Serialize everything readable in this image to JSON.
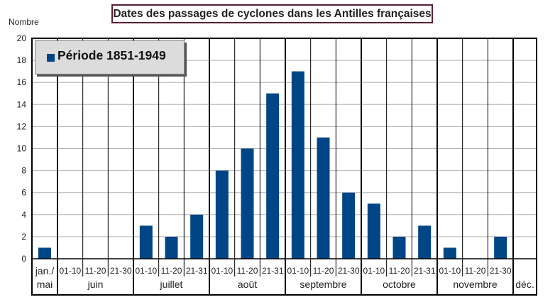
{
  "chart_data": {
    "type": "bar",
    "title": "Dates des passages de cyclones dans les Antilles françaises",
    "ylabel": "Nombre",
    "xlabel": "",
    "ylim": [
      0,
      20
    ],
    "yticks": [
      "0",
      "2",
      "4",
      "6",
      "8",
      "10",
      "12",
      "14",
      "16",
      "18",
      "20"
    ],
    "grid": true,
    "legend_position": "top-left",
    "color": "#004586",
    "series": [
      {
        "name": "Période 1851-1949",
        "values": [
          1,
          0,
          0,
          0,
          3,
          2,
          4,
          8,
          10,
          15,
          17,
          11,
          6,
          5,
          2,
          3,
          1,
          0,
          2,
          0
        ]
      }
    ],
    "categories": [
      "jan./mai",
      "juin 01-10",
      "juin 11-20",
      "juin 21-30",
      "juillet 01-10",
      "juillet 11-20",
      "juillet 21-31",
      "août 01-10",
      "août 11-20",
      "août 21-31",
      "septembre 01-10",
      "septembre 11-20",
      "septembre 21-30",
      "octobre 01-10",
      "octobre 11-20",
      "octobre 21-31",
      "novembre 01-10",
      "novembre 11-20",
      "novembre 21-30",
      "déc."
    ],
    "groups": [
      {
        "label": [
          "jan./",
          "mai"
        ],
        "ticks": []
      },
      {
        "label": [
          "juin"
        ],
        "ticks": [
          "01-10",
          "11-20",
          "21-30"
        ]
      },
      {
        "label": [
          "juillet"
        ],
        "ticks": [
          "01-10",
          "11-20",
          "21-31"
        ]
      },
      {
        "label": [
          "août"
        ],
        "ticks": [
          "01-10",
          "11-20",
          "21-31"
        ]
      },
      {
        "label": [
          "septembre"
        ],
        "ticks": [
          "01-10",
          "11-20",
          "21-30"
        ]
      },
      {
        "label": [
          "octobre"
        ],
        "ticks": [
          "01-10",
          "11-20",
          "21-31"
        ]
      },
      {
        "label": [
          "novembre"
        ],
        "ticks": [
          "01-10",
          "11-20",
          "21-30"
        ]
      },
      {
        "label": [
          "déc."
        ],
        "ticks": []
      }
    ]
  }
}
